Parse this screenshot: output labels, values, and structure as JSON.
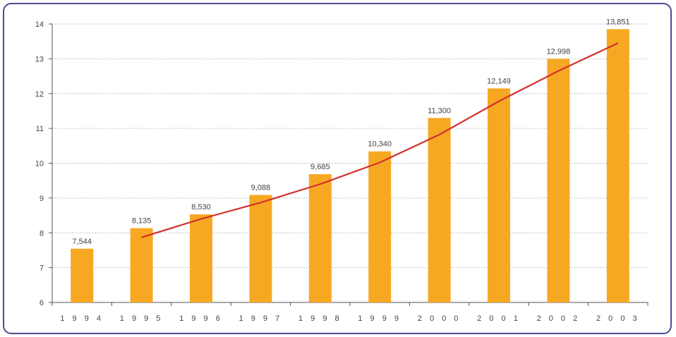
{
  "chart_data": {
    "type": "bar",
    "categories": [
      "1994",
      "1995",
      "1996",
      "1997",
      "1998",
      "1999",
      "2000",
      "2001",
      "2002",
      "2003"
    ],
    "category_labels": [
      "1 9 9 4",
      "1 9 9 5",
      "1 9 9 6",
      "1 9 9 7",
      "1 9 9 8",
      "1 9 9 9",
      "2 0 0 0",
      "2 0 0 1",
      "2 0 0 2",
      "2 0 0 3"
    ],
    "values": [
      7.544,
      8.135,
      8.53,
      9.088,
      9.685,
      10.34,
      11.3,
      12.149,
      12.998,
      13.851
    ],
    "data_labels": [
      "7,544",
      "8,135",
      "8,530",
      "9,088",
      "9,685",
      "10,340",
      "11,300",
      "12,149",
      "12,998",
      "13,851"
    ],
    "trend_line": {
      "type": "line",
      "x": [
        "1995",
        "1996",
        "1997",
        "1998",
        "1999",
        "2000",
        "2001",
        "2002",
        "2003"
      ],
      "values": [
        7.87,
        8.4,
        8.87,
        9.4,
        10.02,
        10.82,
        11.78,
        12.65,
        13.45
      ]
    },
    "title": "",
    "xlabel": "",
    "ylabel": "",
    "ylim": [
      6,
      14
    ],
    "yticks": [
      "6",
      "7",
      "8",
      "9",
      "10",
      "11",
      "12",
      "13",
      "14"
    ],
    "grid": true,
    "legend": "none",
    "colors": {
      "bar": "#f7a823",
      "line": "#d2302c",
      "grid": "#bfbfbf",
      "axis": "#555555",
      "frame": "#4b4c8e"
    }
  }
}
